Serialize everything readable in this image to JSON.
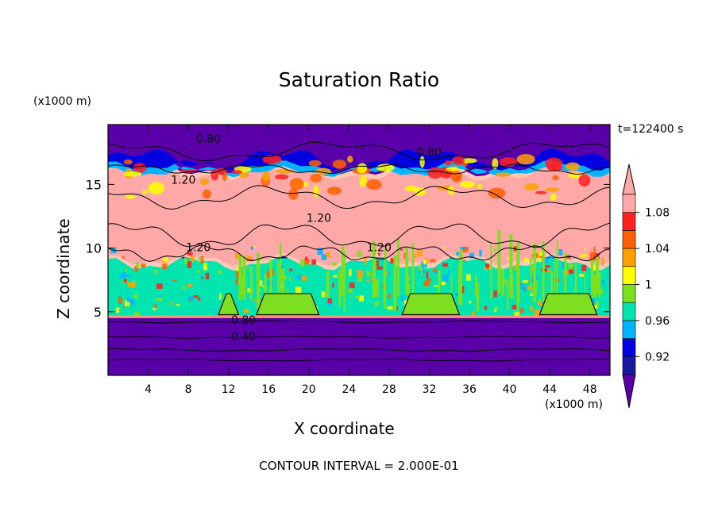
{
  "chart_data": {
    "type": "heatmap",
    "title": "Saturation Ratio",
    "xlabel": "X coordinate",
    "ylabel": "Z coordinate",
    "x_unit_label": "(x1000 m)",
    "y_unit_label": "(x1000 m)",
    "time_label": "t=122400 s",
    "footer": "CONTOUR INTERVAL = 2.000E-01",
    "xlim": [
      0,
      50
    ],
    "ylim": [
      0,
      19.7
    ],
    "x_ticks": [
      "4",
      "8",
      "12",
      "16",
      "20",
      "24",
      "28",
      "32",
      "36",
      "40",
      "44",
      "48"
    ],
    "y_ticks": [
      "5",
      "10",
      "15"
    ],
    "colorbar": {
      "levels": [
        0.9,
        0.92,
        0.94,
        0.96,
        0.98,
        1.0,
        1.02,
        1.04,
        1.06,
        1.08,
        1.1
      ],
      "labels": [
        "0.92",
        "0.96",
        "1",
        "1.04",
        "1.08"
      ],
      "colors": [
        "#5a00a8",
        "#1818a0",
        "#0000e0",
        "#00b4ff",
        "#00e4b0",
        "#7ce020",
        "#ffff00",
        "#ffa000",
        "#ff6000",
        "#ff2020",
        "#ffa8a8"
      ]
    },
    "layers": [
      {
        "z_from": 0,
        "z_to": 4.5,
        "saturation": "below 0.90"
      },
      {
        "z_from": 4.5,
        "z_to": 9,
        "saturation": "0.96 - 1.02"
      },
      {
        "z_from": 9,
        "z_to": 16,
        "saturation": "above 1.10"
      },
      {
        "z_from": 16,
        "z_to": 19.7,
        "saturation": "below 0.90"
      }
    ],
    "contour_labels": [
      {
        "x": 10,
        "z": 18.5,
        "text": "0.80"
      },
      {
        "x": 32,
        "z": 17.5,
        "text": "0.80"
      },
      {
        "x": 7.5,
        "z": 15.3,
        "text": "1.20"
      },
      {
        "x": 21,
        "z": 12.3,
        "text": "1.20"
      },
      {
        "x": 9,
        "z": 10.0,
        "text": "1.20"
      },
      {
        "x": 27,
        "z": 10.0,
        "text": "1.20"
      },
      {
        "x": 13.5,
        "z": 4.3,
        "text": "0.80"
      },
      {
        "x": 13.5,
        "z": 3.0,
        "text": "0.40"
      }
    ],
    "grid": false
  }
}
